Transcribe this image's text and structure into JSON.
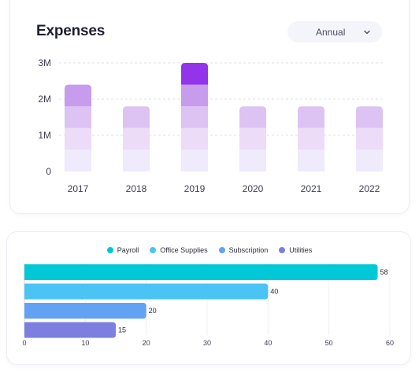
{
  "expenses_card": {
    "title": "Expenses",
    "period_select": {
      "value": "Annual",
      "icon": "chevron-down-icon"
    }
  },
  "colors": {
    "bar_top_highlight": "#9333ea",
    "segments": [
      "#efeafc",
      "#ecdcf8",
      "#dcc3f3",
      "#c79cec",
      "#9b35ee"
    ],
    "hbar": [
      "#00c8d7",
      "#4cc3f5",
      "#62a2f5",
      "#7c7fe0"
    ]
  },
  "chart_data": [
    {
      "type": "bar",
      "stacked": true,
      "categories": [
        "2017",
        "2018",
        "2019",
        "2020",
        "2021",
        "2022"
      ],
      "values": [
        2.4,
        1.8,
        3.0,
        1.8,
        1.8,
        1.8
      ],
      "ylim": [
        0,
        3
      ],
      "yticks": [
        "0",
        "1M",
        "2M",
        "3M"
      ],
      "grid": true
    },
    {
      "type": "bar",
      "orientation": "horizontal",
      "categories": [
        "Payroll",
        "Office Supplies",
        "Subscription",
        "Utilities"
      ],
      "values": [
        58,
        40,
        20,
        15
      ],
      "xlim": [
        0,
        60
      ],
      "xticks": [
        "0",
        "10",
        "20",
        "30",
        "40",
        "50",
        "60"
      ],
      "legend": "top-center",
      "data_labels": [
        "58",
        "40",
        "20",
        "15"
      ]
    }
  ]
}
